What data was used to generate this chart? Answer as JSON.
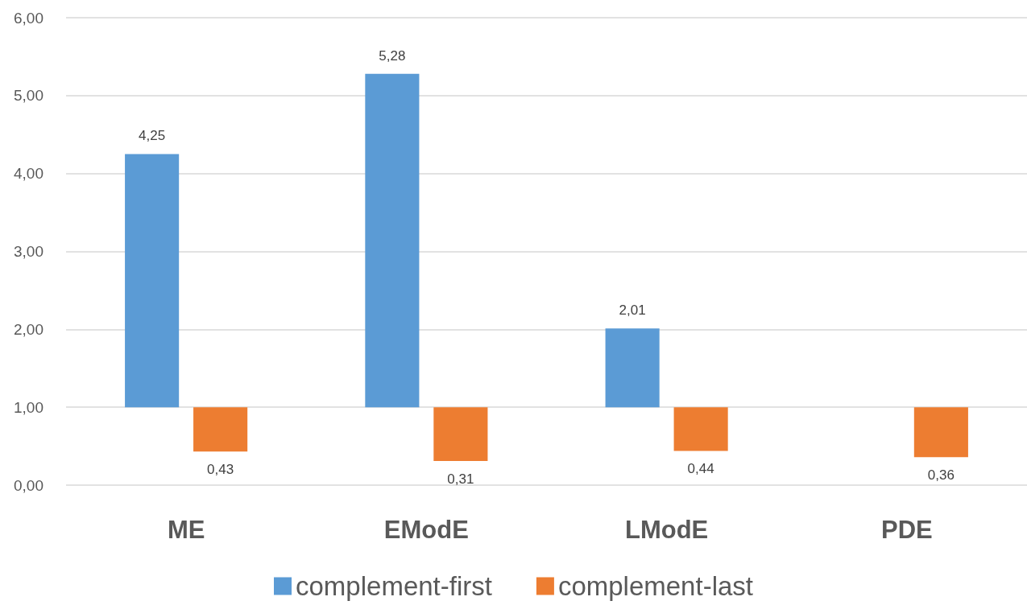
{
  "chart_data": {
    "type": "bar",
    "categories": [
      "ME",
      "EModE",
      "LModE",
      "PDE"
    ],
    "series": [
      {
        "name": "complement-first",
        "color": "#5b9bd5",
        "base": [
          1,
          1,
          1,
          null
        ],
        "values": [
          3.25,
          4.28,
          1.01,
          null
        ],
        "value_labels": [
          "4,25",
          "5,28",
          "2,01",
          null
        ]
      },
      {
        "name": "complement-last",
        "color": "#ed7d31",
        "base": [
          1,
          1,
          1,
          1
        ],
        "values": [
          -0.57,
          -0.69,
          -0.56,
          -0.64
        ],
        "value_labels": [
          "0,43",
          "0,31",
          "0,44",
          "0,36"
        ]
      }
    ],
    "ylim": [
      0,
      6
    ],
    "yticks": [
      {
        "value": 0,
        "label": "0,00"
      },
      {
        "value": 1,
        "label": "1,00"
      },
      {
        "value": 2,
        "label": "2,00"
      },
      {
        "value": 3,
        "label": "3,00"
      },
      {
        "value": 4,
        "label": "4,00"
      },
      {
        "value": 5,
        "label": "5,00"
      },
      {
        "value": 6,
        "label": "6,00"
      }
    ],
    "grid": "y",
    "legend": "bottom"
  }
}
